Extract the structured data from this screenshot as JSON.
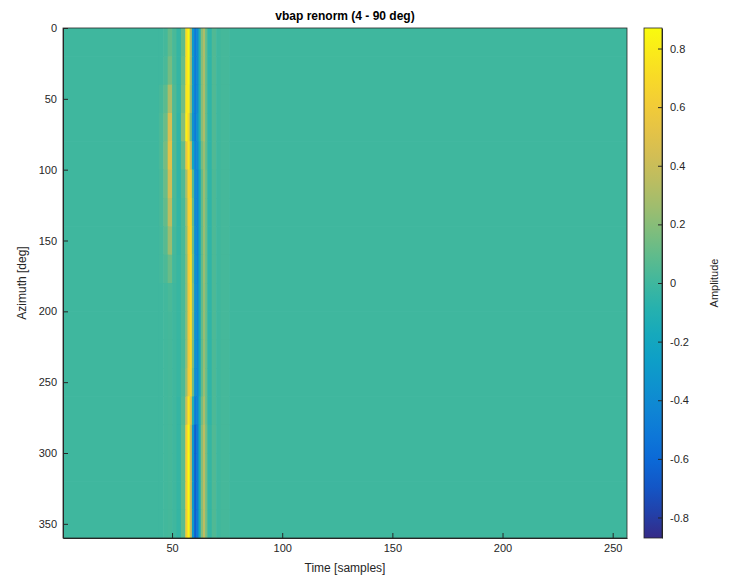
{
  "chart_data": {
    "type": "heatmap",
    "title": "vbap renorm (4 - 90 deg)",
    "x_label": "Time [samples]",
    "y_label": "Azimuth [deg]",
    "xlim": [
      0.5,
      256.5
    ],
    "xticks": [
      50,
      100,
      150,
      200,
      250
    ],
    "ylim": [
      0,
      360
    ],
    "yticks": [
      0,
      50,
      100,
      150,
      200,
      250,
      300,
      350
    ],
    "x_edges": [
      0.5,
      44,
      46,
      48,
      50,
      52,
      54,
      56,
      57,
      58,
      59,
      60,
      61,
      62,
      63,
      64,
      65,
      66,
      68,
      70,
      72,
      76,
      256.5
    ],
    "y_edges": [
      0,
      20,
      40,
      60,
      80,
      100,
      120,
      140,
      160,
      180,
      200,
      220,
      240,
      260,
      280,
      300,
      320,
      340,
      360
    ],
    "cells": [
      [
        0,
        0,
        0.02,
        0.1,
        0.03,
        -0.03,
        0.1,
        0.7,
        0.85,
        0.3,
        -0.3,
        -0.5,
        -0.4,
        -0.1,
        0.2,
        0.3,
        0.1,
        -0.05,
        0.05,
        0,
        0.02,
        0
      ],
      [
        0,
        0,
        0.03,
        0.15,
        0.03,
        -0.03,
        0.12,
        0.72,
        0.84,
        0.28,
        -0.3,
        -0.5,
        -0.4,
        -0.1,
        0.2,
        0.3,
        0.1,
        -0.05,
        0.05,
        0,
        0.02,
        0
      ],
      [
        0,
        0.02,
        0.08,
        0.3,
        0.05,
        -0.03,
        0.15,
        0.75,
        0.8,
        0.25,
        -0.3,
        -0.5,
        -0.4,
        -0.1,
        0.2,
        0.3,
        0.1,
        -0.05,
        0.05,
        0,
        0.02,
        0
      ],
      [
        0,
        0.03,
        0.12,
        0.45,
        0.05,
        -0.05,
        0.2,
        0.8,
        0.7,
        0.15,
        -0.35,
        -0.5,
        -0.35,
        -0.1,
        0.2,
        0.3,
        0.1,
        -0.05,
        0.05,
        0,
        0.02,
        0
      ],
      [
        0,
        0.03,
        0.15,
        0.5,
        0.05,
        -0.05,
        0.1,
        0.55,
        0.75,
        0.4,
        -0.2,
        -0.45,
        -0.4,
        -0.15,
        0.15,
        0.25,
        0.1,
        -0.05,
        0.05,
        0,
        0.02,
        0
      ],
      [
        0,
        0.02,
        0.12,
        0.42,
        0.04,
        -0.05,
        0.05,
        0.3,
        0.65,
        0.6,
        0.05,
        -0.4,
        -0.45,
        -0.2,
        0.1,
        0.25,
        0.12,
        -0.05,
        0.04,
        0,
        0.02,
        0
      ],
      [
        0,
        0.02,
        0.1,
        0.35,
        0.03,
        -0.04,
        0.03,
        0.25,
        0.62,
        0.65,
        0.1,
        -0.4,
        -0.45,
        -0.2,
        0.1,
        0.25,
        0.12,
        -0.05,
        0.04,
        0,
        0.02,
        0
      ],
      [
        0,
        0.01,
        0.07,
        0.25,
        0.02,
        -0.03,
        0.03,
        0.22,
        0.6,
        0.68,
        0.12,
        -0.38,
        -0.45,
        -0.2,
        0.1,
        0.25,
        0.12,
        -0.05,
        0.04,
        0,
        0.02,
        0
      ],
      [
        0,
        0.01,
        0.04,
        0.12,
        0.01,
        -0.02,
        0.03,
        0.2,
        0.58,
        0.7,
        0.15,
        -0.36,
        -0.44,
        -0.2,
        0.1,
        0.25,
        0.12,
        -0.05,
        0.04,
        0,
        0.02,
        0
      ],
      [
        0,
        0,
        0.01,
        0.03,
        0,
        -0.02,
        0.03,
        0.2,
        0.55,
        0.7,
        0.18,
        -0.35,
        -0.42,
        -0.2,
        0.1,
        0.24,
        0.12,
        -0.05,
        0.04,
        0,
        0.02,
        0
      ],
      [
        0,
        0,
        0.01,
        0.02,
        0,
        -0.02,
        0.03,
        0.2,
        0.55,
        0.7,
        0.18,
        -0.35,
        -0.42,
        -0.2,
        0.1,
        0.24,
        0.12,
        -0.05,
        0.04,
        0,
        0.02,
        0
      ],
      [
        0,
        0,
        0.01,
        0.02,
        0,
        -0.02,
        0.03,
        0.22,
        0.56,
        0.68,
        0.16,
        -0.36,
        -0.42,
        -0.2,
        0.1,
        0.24,
        0.12,
        -0.05,
        0.04,
        0,
        0.02,
        0
      ],
      [
        0,
        0,
        0.01,
        0.02,
        0,
        -0.02,
        0.04,
        0.25,
        0.58,
        0.65,
        0.12,
        -0.38,
        -0.43,
        -0.2,
        0.1,
        0.25,
        0.12,
        -0.05,
        0.04,
        0,
        0.02,
        0
      ],
      [
        0,
        0,
        0.01,
        0.02,
        0,
        -0.03,
        0.06,
        0.4,
        0.75,
        0.5,
        -0.1,
        -0.5,
        -0.45,
        -0.15,
        0.15,
        0.3,
        0.12,
        -0.05,
        0.04,
        0,
        0.02,
        0
      ],
      [
        0,
        0,
        0.01,
        0.02,
        0,
        -0.03,
        0.08,
        0.6,
        0.84,
        0.4,
        -0.3,
        -0.65,
        -0.5,
        -0.15,
        0.2,
        0.35,
        0.15,
        -0.03,
        0.05,
        0,
        0.02,
        0
      ],
      [
        0,
        0,
        0.01,
        0.02,
        0,
        -0.03,
        0.08,
        0.6,
        0.86,
        0.4,
        -0.3,
        -0.65,
        -0.5,
        -0.15,
        0.2,
        0.35,
        0.15,
        -0.03,
        0.05,
        0,
        0.02,
        0
      ],
      [
        0,
        0,
        0.01,
        0.02,
        0,
        -0.03,
        0.08,
        0.6,
        0.85,
        0.4,
        -0.3,
        -0.65,
        -0.5,
        -0.15,
        0.2,
        0.35,
        0.15,
        -0.03,
        0.05,
        0,
        0.02,
        0
      ],
      [
        0,
        0,
        0.01,
        0.02,
        0,
        -0.03,
        0.08,
        0.6,
        0.84,
        0.4,
        -0.3,
        -0.65,
        -0.5,
        -0.15,
        0.2,
        0.35,
        0.15,
        -0.03,
        0.05,
        0,
        0.02,
        0
      ]
    ],
    "colorbar": {
      "label": "Amplitude",
      "range": [
        -0.87,
        0.87
      ],
      "ticks": [
        -0.8,
        -0.6,
        -0.4,
        -0.2,
        0,
        0.2,
        0.4,
        0.6,
        0.8
      ]
    }
  }
}
